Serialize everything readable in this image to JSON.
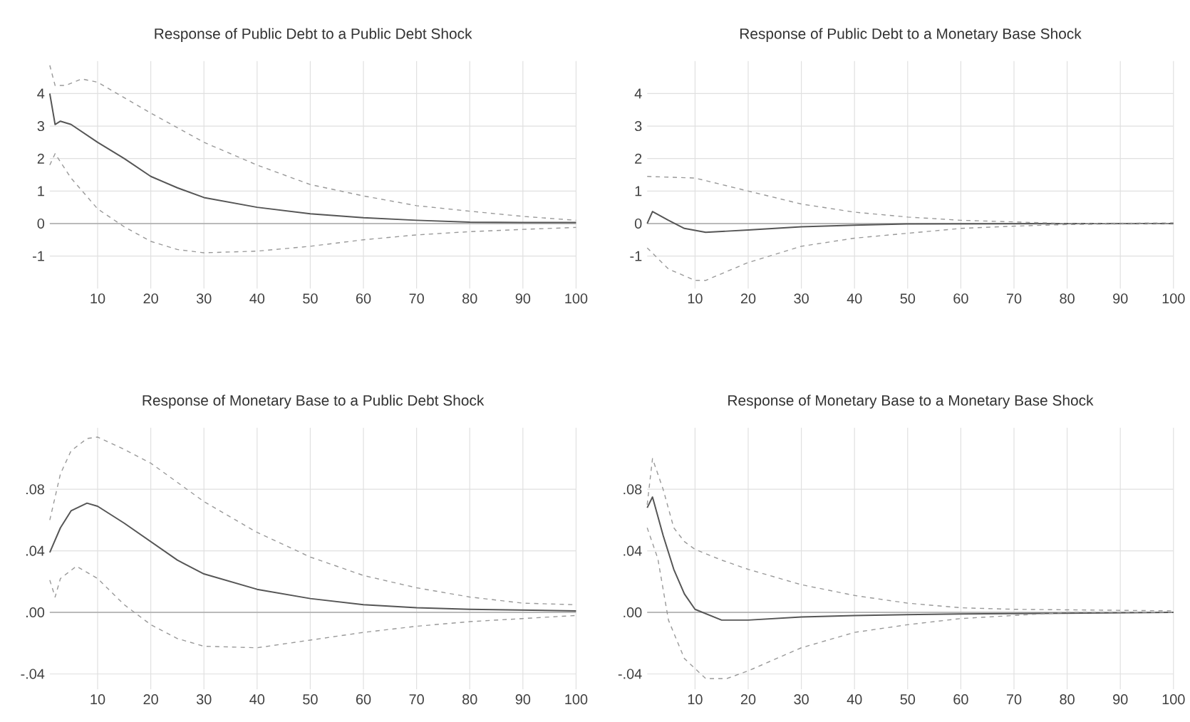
{
  "chart_data": [
    {
      "type": "line",
      "title": "Response of Public Debt to a Public Debt Shock",
      "xlim": [
        1,
        100
      ],
      "xticks": [
        10,
        20,
        30,
        40,
        50,
        60,
        70,
        80,
        90,
        100
      ],
      "ylim": [
        -2,
        5
      ],
      "yticks": [
        -1,
        0,
        1,
        2,
        3,
        4
      ],
      "grid": true,
      "ref_lines": [
        {
          "axis": "y",
          "value": 0,
          "color": "#aaaaaa"
        }
      ],
      "series": [
        {
          "color": "#555555",
          "line_style": "solid",
          "x": [
            1,
            2,
            3,
            5,
            10,
            15,
            20,
            25,
            30,
            40,
            50,
            60,
            70,
            80,
            90,
            100
          ],
          "values": [
            4.0,
            3.05,
            3.15,
            3.05,
            2.5,
            2.0,
            1.45,
            1.1,
            0.8,
            0.5,
            0.3,
            0.18,
            0.1,
            0.04,
            0.03,
            0.03
          ]
        },
        {
          "color": "#999999",
          "line_style": "dashed",
          "x": [
            1,
            2,
            4,
            7,
            10,
            20,
            30,
            40,
            50,
            60,
            70,
            80,
            90,
            100
          ],
          "values": [
            4.87,
            4.25,
            4.25,
            4.45,
            4.35,
            3.4,
            2.5,
            1.8,
            1.2,
            0.85,
            0.55,
            0.38,
            0.22,
            0.1
          ]
        },
        {
          "color": "#999999",
          "line_style": "dashed",
          "x": [
            1,
            2,
            5,
            10,
            15,
            20,
            25,
            30,
            40,
            50,
            60,
            70,
            80,
            90,
            100
          ],
          "values": [
            1.8,
            2.15,
            1.4,
            0.45,
            -0.1,
            -0.55,
            -0.8,
            -0.9,
            -0.85,
            -0.7,
            -0.5,
            -0.35,
            -0.25,
            -0.18,
            -0.12
          ]
        }
      ]
    },
    {
      "type": "line",
      "title": "Response of Public Debt to a Monetary Base Shock",
      "xlim": [
        1,
        100
      ],
      "xticks": [
        10,
        20,
        30,
        40,
        50,
        60,
        70,
        80,
        90,
        100
      ],
      "ylim": [
        -2,
        5
      ],
      "yticks": [
        -1,
        0,
        1,
        2,
        3,
        4
      ],
      "grid": true,
      "ref_lines": [
        {
          "axis": "y",
          "value": 0,
          "color": "#aaaaaa"
        }
      ],
      "series": [
        {
          "color": "#555555",
          "line_style": "solid",
          "x": [
            1,
            2,
            5,
            8,
            12,
            20,
            30,
            40,
            50,
            100
          ],
          "values": [
            0,
            0.37,
            0.1,
            -0.15,
            -0.27,
            -0.2,
            -0.1,
            -0.05,
            -0.01,
            0
          ]
        },
        {
          "color": "#999999",
          "line_style": "dashed",
          "x": [
            1,
            10,
            20,
            30,
            40,
            50,
            60,
            70,
            80,
            100
          ],
          "values": [
            1.45,
            1.4,
            1.0,
            0.6,
            0.35,
            0.2,
            0.1,
            0.05,
            0.0,
            0.02
          ]
        },
        {
          "color": "#999999",
          "line_style": "dashed",
          "x": [
            1,
            5,
            10,
            12,
            20,
            30,
            40,
            50,
            60,
            70,
            80,
            100
          ],
          "values": [
            -0.75,
            -1.4,
            -1.75,
            -1.75,
            -1.2,
            -0.7,
            -0.45,
            -0.3,
            -0.15,
            -0.08,
            -0.03,
            0
          ]
        }
      ]
    },
    {
      "type": "line",
      "title": "Response of Monetary Base to a Public Debt Shock",
      "xlim": [
        1,
        100
      ],
      "xticks": [
        10,
        20,
        30,
        40,
        50,
        60,
        70,
        80,
        90,
        100
      ],
      "ylim": [
        -0.05,
        0.12
      ],
      "yticks": [
        {
          "value": -0.04,
          "label": "-.04"
        },
        {
          "value": 0,
          "label": ".00"
        },
        {
          "value": 0.04,
          "label": ".04"
        },
        {
          "value": 0.08,
          "label": ".08"
        }
      ],
      "grid": true,
      "ref_lines": [
        {
          "axis": "y",
          "value": 0,
          "color": "#aaaaaa"
        }
      ],
      "series": [
        {
          "color": "#555555",
          "line_style": "solid",
          "x": [
            1,
            3,
            5,
            8,
            10,
            15,
            20,
            25,
            30,
            40,
            50,
            60,
            70,
            80,
            100
          ],
          "values": [
            0.039,
            0.055,
            0.066,
            0.071,
            0.069,
            0.058,
            0.046,
            0.034,
            0.025,
            0.015,
            0.009,
            0.005,
            0.003,
            0.002,
            0.001
          ]
        },
        {
          "color": "#999999",
          "line_style": "dashed",
          "x": [
            1,
            3,
            5,
            8,
            10,
            15,
            20,
            30,
            40,
            50,
            60,
            70,
            80,
            90,
            100
          ],
          "values": [
            0.06,
            0.09,
            0.105,
            0.113,
            0.114,
            0.106,
            0.097,
            0.072,
            0.052,
            0.036,
            0.024,
            0.016,
            0.01,
            0.006,
            0.005
          ]
        },
        {
          "color": "#999999",
          "line_style": "dashed",
          "x": [
            1,
            2,
            3,
            6,
            10,
            15,
            20,
            25,
            30,
            40,
            50,
            60,
            70,
            80,
            90,
            100
          ],
          "values": [
            0.021,
            0.01,
            0.022,
            0.03,
            0.022,
            0.005,
            -0.008,
            -0.017,
            -0.022,
            -0.023,
            -0.018,
            -0.013,
            -0.009,
            -0.006,
            -0.004,
            -0.002
          ]
        }
      ]
    },
    {
      "type": "line",
      "title": "Response of Monetary Base to a Monetary Base Shock",
      "xlim": [
        1,
        100
      ],
      "xticks": [
        10,
        20,
        30,
        40,
        50,
        60,
        70,
        80,
        90,
        100
      ],
      "ylim": [
        -0.05,
        0.12
      ],
      "yticks": [
        {
          "value": -0.04,
          "label": "-.04"
        },
        {
          "value": 0,
          "label": ".00"
        },
        {
          "value": 0.04,
          "label": ".04"
        },
        {
          "value": 0.08,
          "label": ".08"
        }
      ],
      "grid": true,
      "ref_lines": [
        {
          "axis": "y",
          "value": 0,
          "color": "#aaaaaa"
        }
      ],
      "series": [
        {
          "color": "#555555",
          "line_style": "solid",
          "x": [
            1,
            2,
            4,
            6,
            8,
            10,
            15,
            20,
            30,
            40,
            60,
            100
          ],
          "values": [
            0.068,
            0.075,
            0.05,
            0.028,
            0.012,
            0.002,
            -0.005,
            -0.005,
            -0.003,
            -0.002,
            -0.001,
            0
          ]
        },
        {
          "color": "#999999",
          "line_style": "dashed",
          "x": [
            1,
            2,
            4,
            6,
            8,
            10,
            15,
            20,
            30,
            40,
            50,
            60,
            70,
            100
          ],
          "values": [
            0.07,
            0.1,
            0.08,
            0.055,
            0.046,
            0.041,
            0.034,
            0.028,
            0.018,
            0.011,
            0.006,
            0.003,
            0.002,
            0.001
          ]
        },
        {
          "color": "#999999",
          "line_style": "dashed",
          "x": [
            1,
            3,
            5,
            8,
            12,
            16,
            20,
            30,
            40,
            50,
            60,
            70,
            80,
            100
          ],
          "values": [
            0.055,
            0.035,
            -0.005,
            -0.03,
            -0.043,
            -0.043,
            -0.038,
            -0.023,
            -0.013,
            -0.008,
            -0.004,
            -0.002,
            0,
            0
          ]
        }
      ]
    }
  ]
}
